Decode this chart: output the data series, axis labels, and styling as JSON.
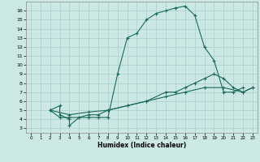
{
  "xlabel": "Humidex (Indice chaleur)",
  "bg_color": "#cce8e5",
  "grid_color": "#aacfcc",
  "line_color": "#1a6b5a",
  "xlim": [
    -0.5,
    23.5
  ],
  "ylim": [
    2.5,
    17
  ],
  "xticks": [
    0,
    1,
    2,
    3,
    4,
    5,
    6,
    7,
    8,
    9,
    10,
    11,
    12,
    13,
    14,
    15,
    16,
    17,
    18,
    19,
    20,
    21,
    22,
    23
  ],
  "yticks": [
    3,
    4,
    5,
    6,
    7,
    8,
    9,
    10,
    11,
    12,
    13,
    14,
    15,
    16
  ],
  "line1_x": [
    2,
    3,
    3,
    4,
    4,
    5,
    6,
    7,
    8,
    9,
    10,
    11,
    12,
    13,
    14,
    15,
    16,
    17,
    18,
    19,
    20,
    21,
    22
  ],
  "line1_y": [
    5,
    5.5,
    4.5,
    4,
    3.3,
    4.2,
    4.2,
    4.2,
    4.2,
    9,
    13,
    13.5,
    15,
    15.7,
    16,
    16.3,
    16.5,
    15.5,
    12,
    10.5,
    7,
    7,
    7.5
  ],
  "line2_x": [
    2,
    3,
    4,
    5,
    6,
    7,
    8,
    10,
    12,
    14,
    15,
    16,
    17,
    18,
    19,
    20,
    21,
    22,
    23
  ],
  "line2_y": [
    5,
    4.2,
    4.2,
    4.2,
    4.5,
    4.5,
    5,
    5.5,
    6,
    7,
    7,
    7.5,
    8,
    8.5,
    9,
    8.5,
    7.5,
    7,
    7.5
  ],
  "line3_x": [
    2,
    4,
    6,
    8,
    10,
    12,
    14,
    16,
    18,
    20,
    22,
    23
  ],
  "line3_y": [
    5,
    4.5,
    4.8,
    5,
    5.5,
    6,
    6.5,
    7,
    7.5,
    7.5,
    7,
    7.5
  ]
}
